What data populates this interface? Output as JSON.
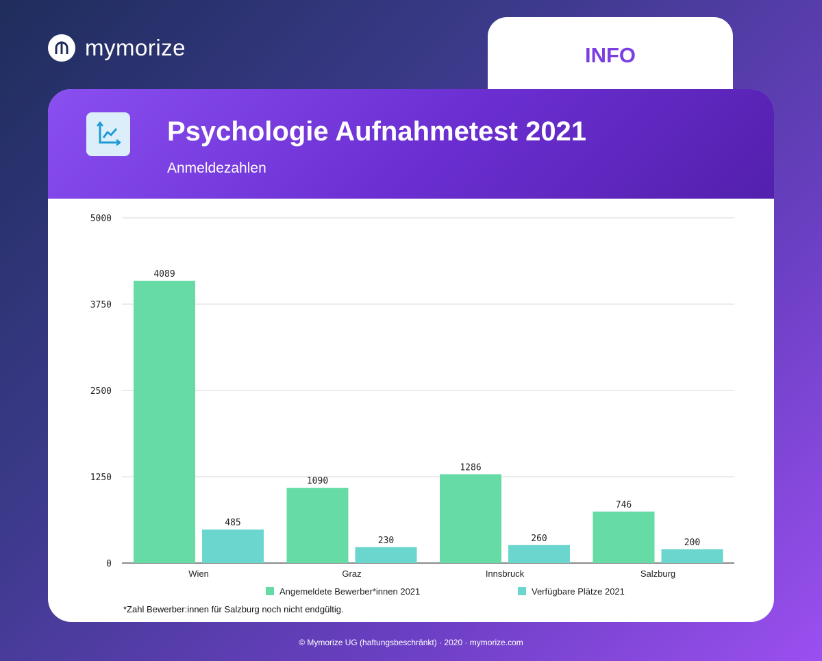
{
  "brand": {
    "name": "mymorize"
  },
  "tab": {
    "label": "INFO"
  },
  "header": {
    "title": "Psychologie Aufnahmetest 2021",
    "subtitle": "Anmeldezahlen",
    "icon": "chart-icon"
  },
  "footnote": "*Zahl Bewerber:innen für Salzburg noch nicht endgültig.",
  "footer": "© Mymorize UG (haftungsbeschränkt) · 2020 · mymorize.com",
  "colors": {
    "series1": "#66dba5",
    "series2": "#6bd6cd",
    "accent": "#7a3fe0"
  },
  "chart_data": {
    "type": "bar",
    "categories": [
      "Wien",
      "Graz",
      "Innsbruck",
      "Salzburg"
    ],
    "series": [
      {
        "name": "Angemeldete Bewerber*innen 2021",
        "values": [
          4089,
          1090,
          1286,
          746
        ]
      },
      {
        "name": "Verfügbare Plätze 2021",
        "values": [
          485,
          230,
          260,
          200
        ]
      }
    ],
    "yticks": [
      0,
      1250,
      2500,
      3750,
      5000
    ],
    "ylim": [
      0,
      5000
    ],
    "grid": true,
    "legend": "bottom"
  }
}
